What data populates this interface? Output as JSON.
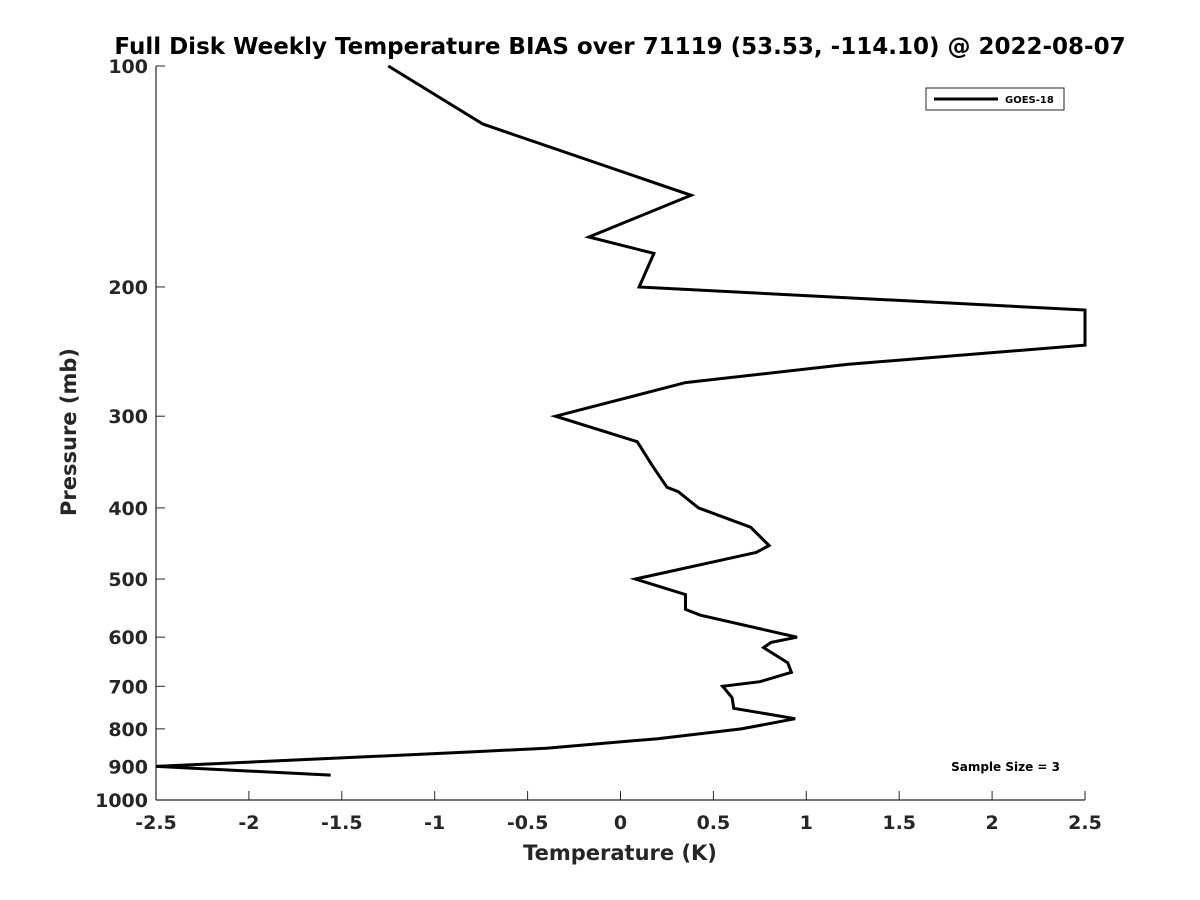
{
  "chart_data": {
    "type": "line",
    "title": "Full Disk Weekly Temperature BIAS over 71119 (53.53, -114.10) @ 2022-08-07",
    "xlabel": "Temperature (K)",
    "ylabel": "Pressure (mb)",
    "xlim": [
      -2.5,
      2.5
    ],
    "ylim": [
      100,
      1000
    ],
    "y_scale": "log",
    "y_reversed": true,
    "grid": false,
    "legend_position": "top-right",
    "x_ticks": [
      -2.5,
      -2,
      -1.5,
      -1,
      -0.5,
      0,
      0.5,
      1,
      1.5,
      2,
      2.5
    ],
    "x_tick_labels": [
      "-2.5",
      "-2",
      "-1.5",
      "-1",
      "-0.5",
      "0",
      "0.5",
      "1",
      "1.5",
      "2",
      "2.5"
    ],
    "y_ticks": [
      100,
      200,
      300,
      400,
      500,
      600,
      700,
      800,
      900,
      1000
    ],
    "y_tick_labels": [
      "100",
      "200",
      "300",
      "400",
      "500",
      "600",
      "700",
      "800",
      "900",
      "1000"
    ],
    "series": [
      {
        "name": "GOES-18",
        "color": "#000000",
        "points": [
          [
            -1.25,
            100
          ],
          [
            -0.74,
            120
          ],
          [
            0.38,
            150
          ],
          [
            -0.17,
            171
          ],
          [
            0.18,
            180
          ],
          [
            0.1,
            200
          ],
          [
            2.5,
            215
          ],
          [
            2.5,
            240
          ],
          [
            1.22,
            255
          ],
          [
            0.35,
            270
          ],
          [
            -0.35,
            300
          ],
          [
            0.09,
            325
          ],
          [
            0.17,
            350
          ],
          [
            0.25,
            375
          ],
          [
            0.31,
            380
          ],
          [
            0.42,
            400
          ],
          [
            0.7,
            425
          ],
          [
            0.8,
            450
          ],
          [
            0.73,
            460
          ],
          [
            0.48,
            475
          ],
          [
            0.08,
            500
          ],
          [
            0.35,
            525
          ],
          [
            0.35,
            550
          ],
          [
            0.43,
            560
          ],
          [
            0.95,
            600
          ],
          [
            0.81,
            610
          ],
          [
            0.77,
            620
          ],
          [
            0.9,
            650
          ],
          [
            0.92,
            670
          ],
          [
            0.75,
            690
          ],
          [
            0.55,
            700
          ],
          [
            0.6,
            725
          ],
          [
            0.61,
            750
          ],
          [
            0.94,
            775
          ],
          [
            0.65,
            800
          ],
          [
            0.2,
            825
          ],
          [
            -0.4,
            850
          ],
          [
            -0.8,
            860
          ],
          [
            -2.5,
            900
          ],
          [
            -1.56,
            925
          ]
        ]
      }
    ],
    "annotations": [
      {
        "text": "Sample Size = 3",
        "position": "bottom-right"
      }
    ]
  }
}
